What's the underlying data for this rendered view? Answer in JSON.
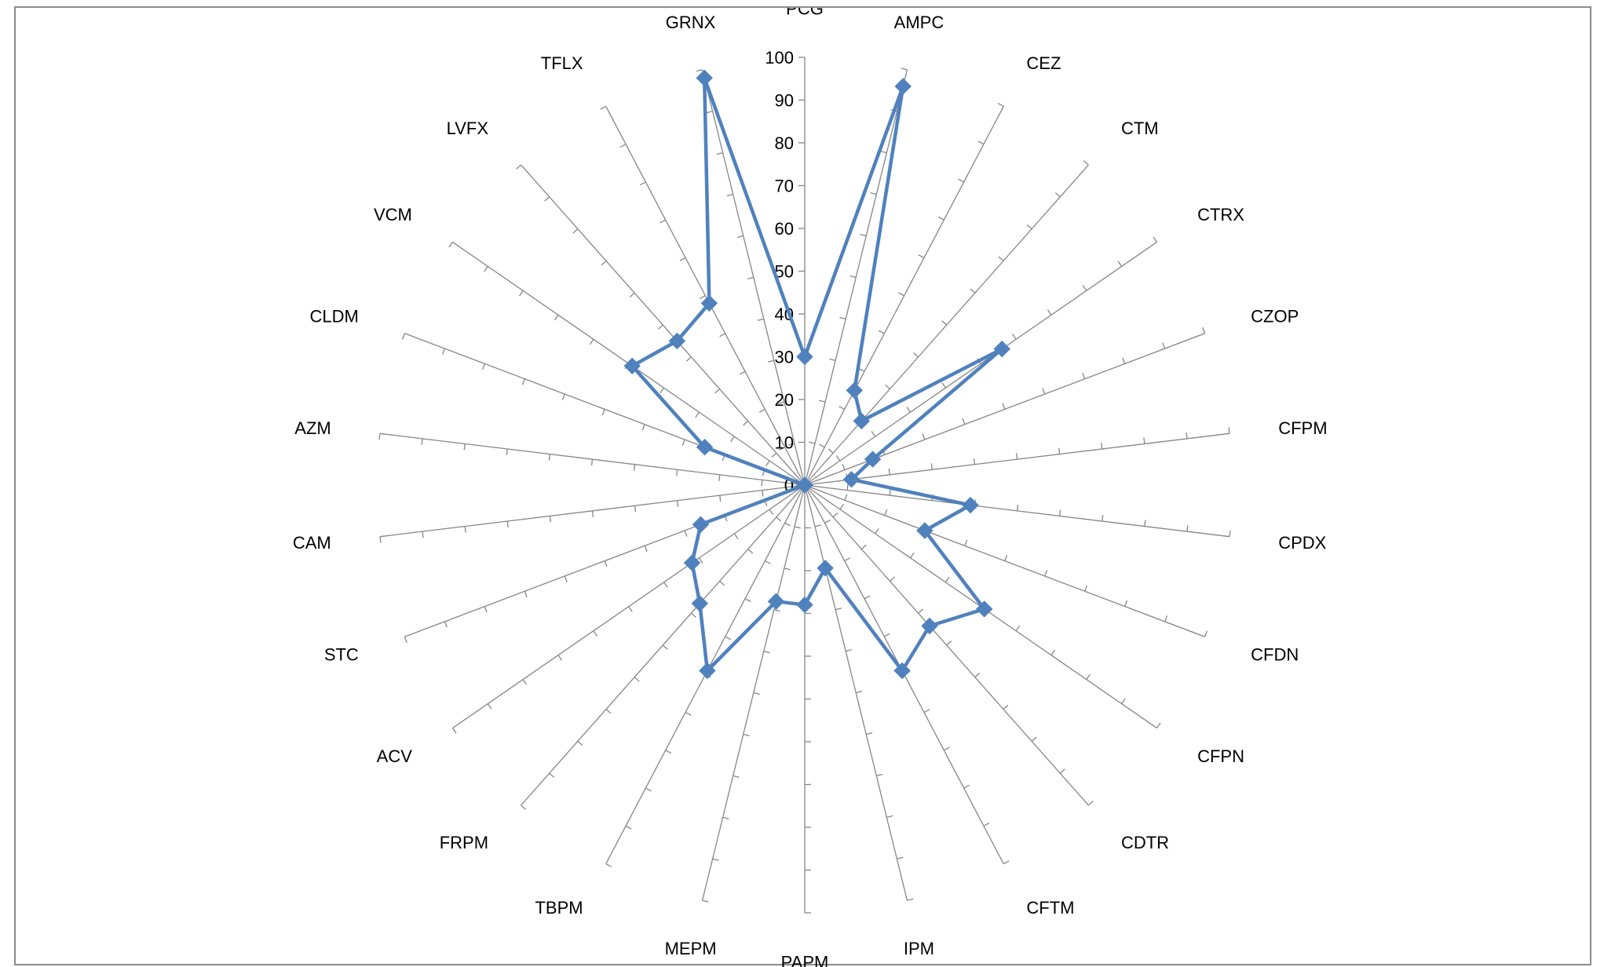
{
  "chart_data": {
    "type": "radar",
    "title": "",
    "categories": [
      "PCG",
      "AMPC",
      "CEZ",
      "CTM",
      "CTRX",
      "CZOP",
      "CFPM",
      "CPDX",
      "CFDN",
      "CFPN",
      "CDTR",
      "CFTM",
      "IPM",
      "PAPM",
      "MEPM",
      "TBPM",
      "FRPM",
      "ACV",
      "STC",
      "CAM",
      "AZM",
      "CLDM",
      "VCM",
      "LVFX",
      "TFLX",
      "GRNX"
    ],
    "axis_ticks": [
      "0",
      "10",
      "20",
      "30",
      "40",
      "50",
      "60",
      "70",
      "80",
      "90",
      "100"
    ],
    "rmin": 0,
    "rmax": 100,
    "series": [
      {
        "values": [
          30,
          96,
          25,
          20,
          56,
          17,
          11,
          39,
          30,
          51,
          44,
          49,
          20,
          28,
          28,
          49,
          37,
          32,
          26,
          0,
          0,
          25,
          49,
          45,
          48,
          98
        ]
      }
    ],
    "colors": {
      "series": "#4f81bd",
      "axis": "#868686",
      "frame": "#8c8c8c"
    },
    "grid": false
  }
}
